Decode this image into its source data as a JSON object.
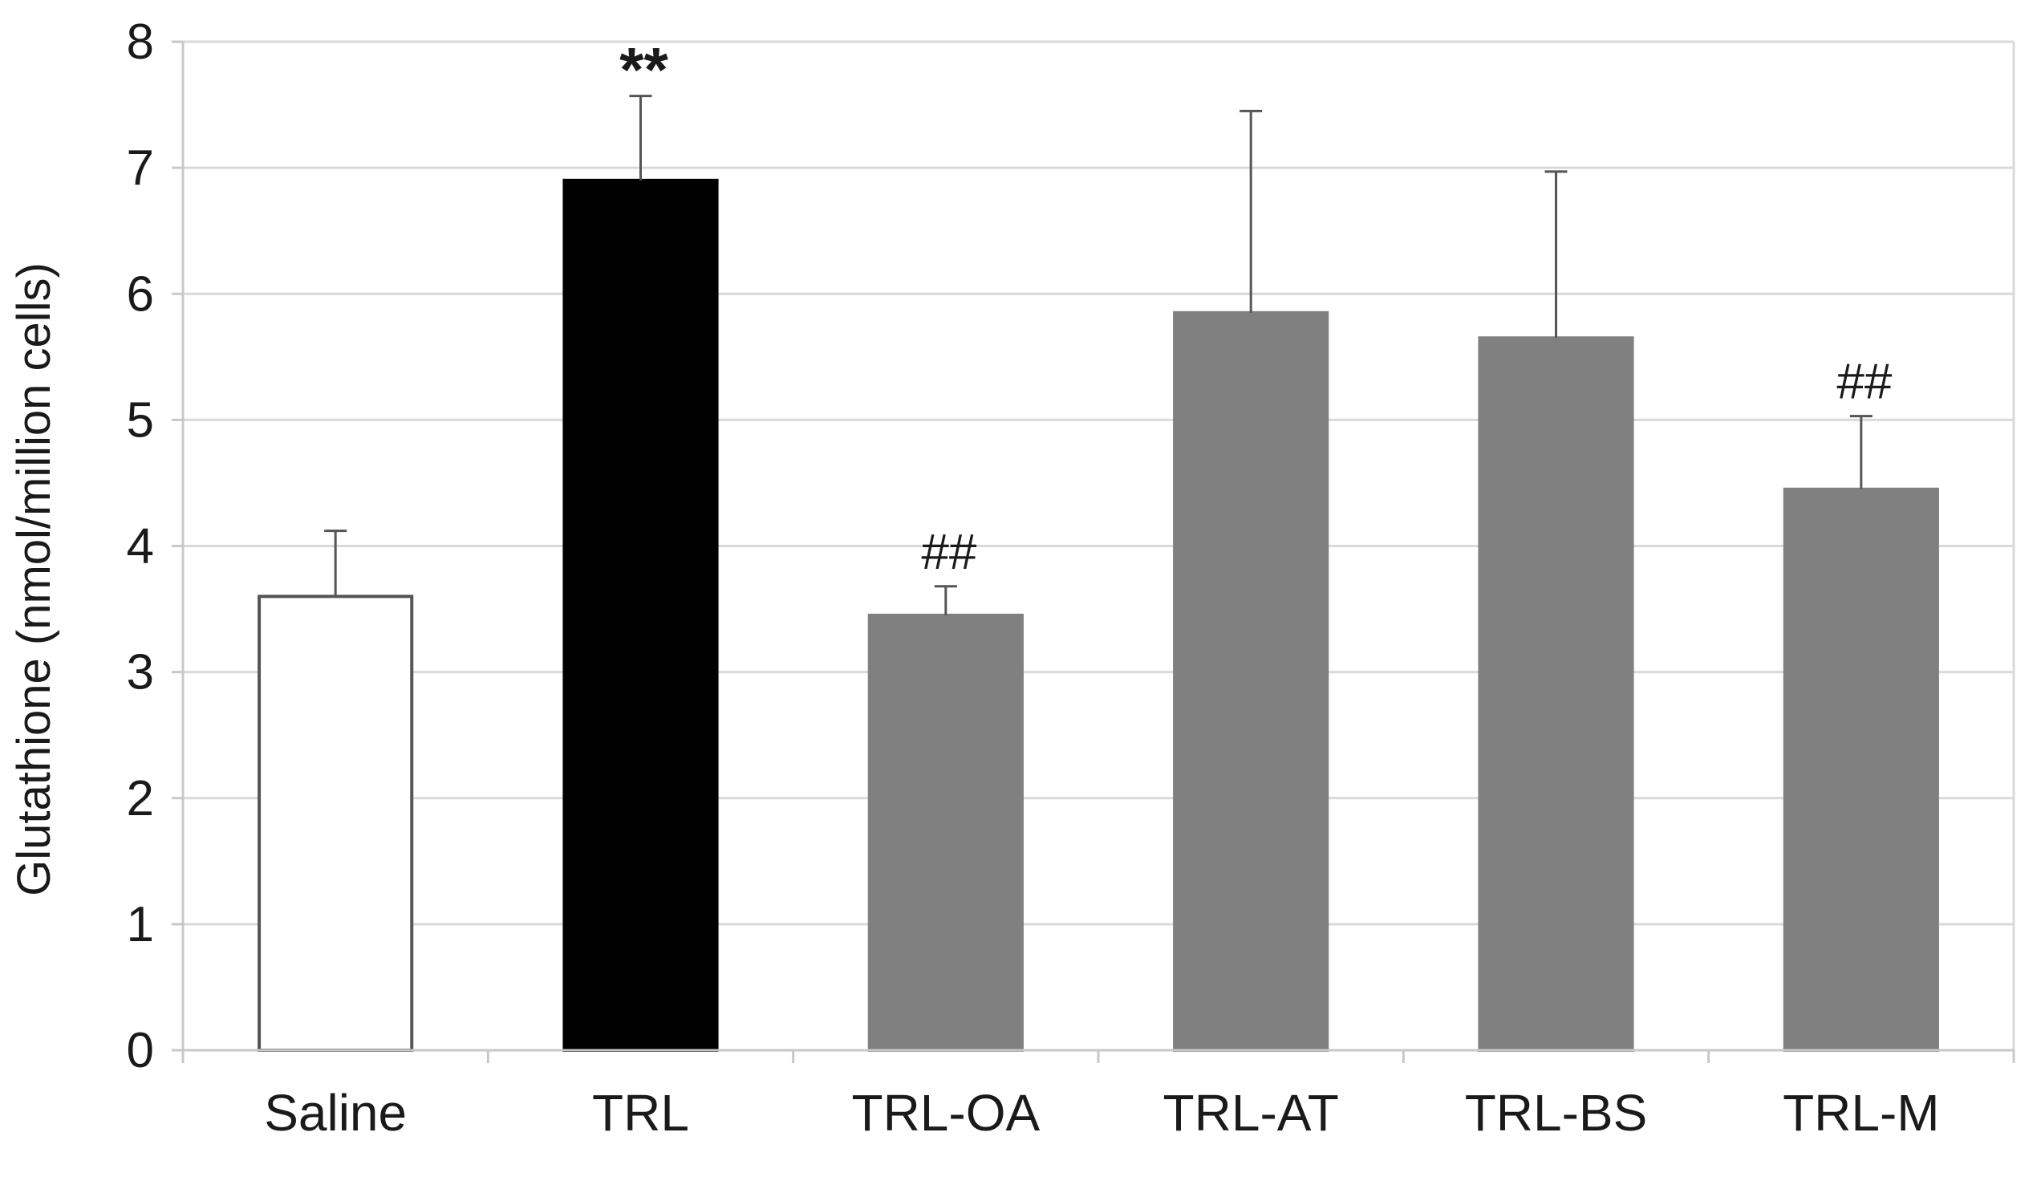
{
  "chart_data": {
    "type": "bar",
    "categories": [
      "Saline",
      "TRL",
      "TRL-OA",
      "TRL-AT",
      "TRL-BS",
      "TRL-M"
    ],
    "values": [
      3.6,
      6.9,
      3.45,
      5.85,
      5.65,
      4.45
    ],
    "errors": [
      0.52,
      0.67,
      0.23,
      1.6,
      1.32,
      0.58
    ],
    "annotations": [
      "",
      "**",
      "##",
      "",
      "",
      "##"
    ],
    "colors": [
      "#ffffff",
      "#000000",
      "#808080",
      "#808080",
      "#808080",
      "#808080"
    ],
    "ylabel": "Glutathione (nmol/million cells)",
    "xlabel": "",
    "title": "",
    "ylim": [
      0,
      8
    ],
    "yticks": [
      "0",
      "1",
      "2",
      "3",
      "4",
      "5",
      "6",
      "7",
      "8"
    ],
    "grid": true,
    "legend": "none"
  }
}
